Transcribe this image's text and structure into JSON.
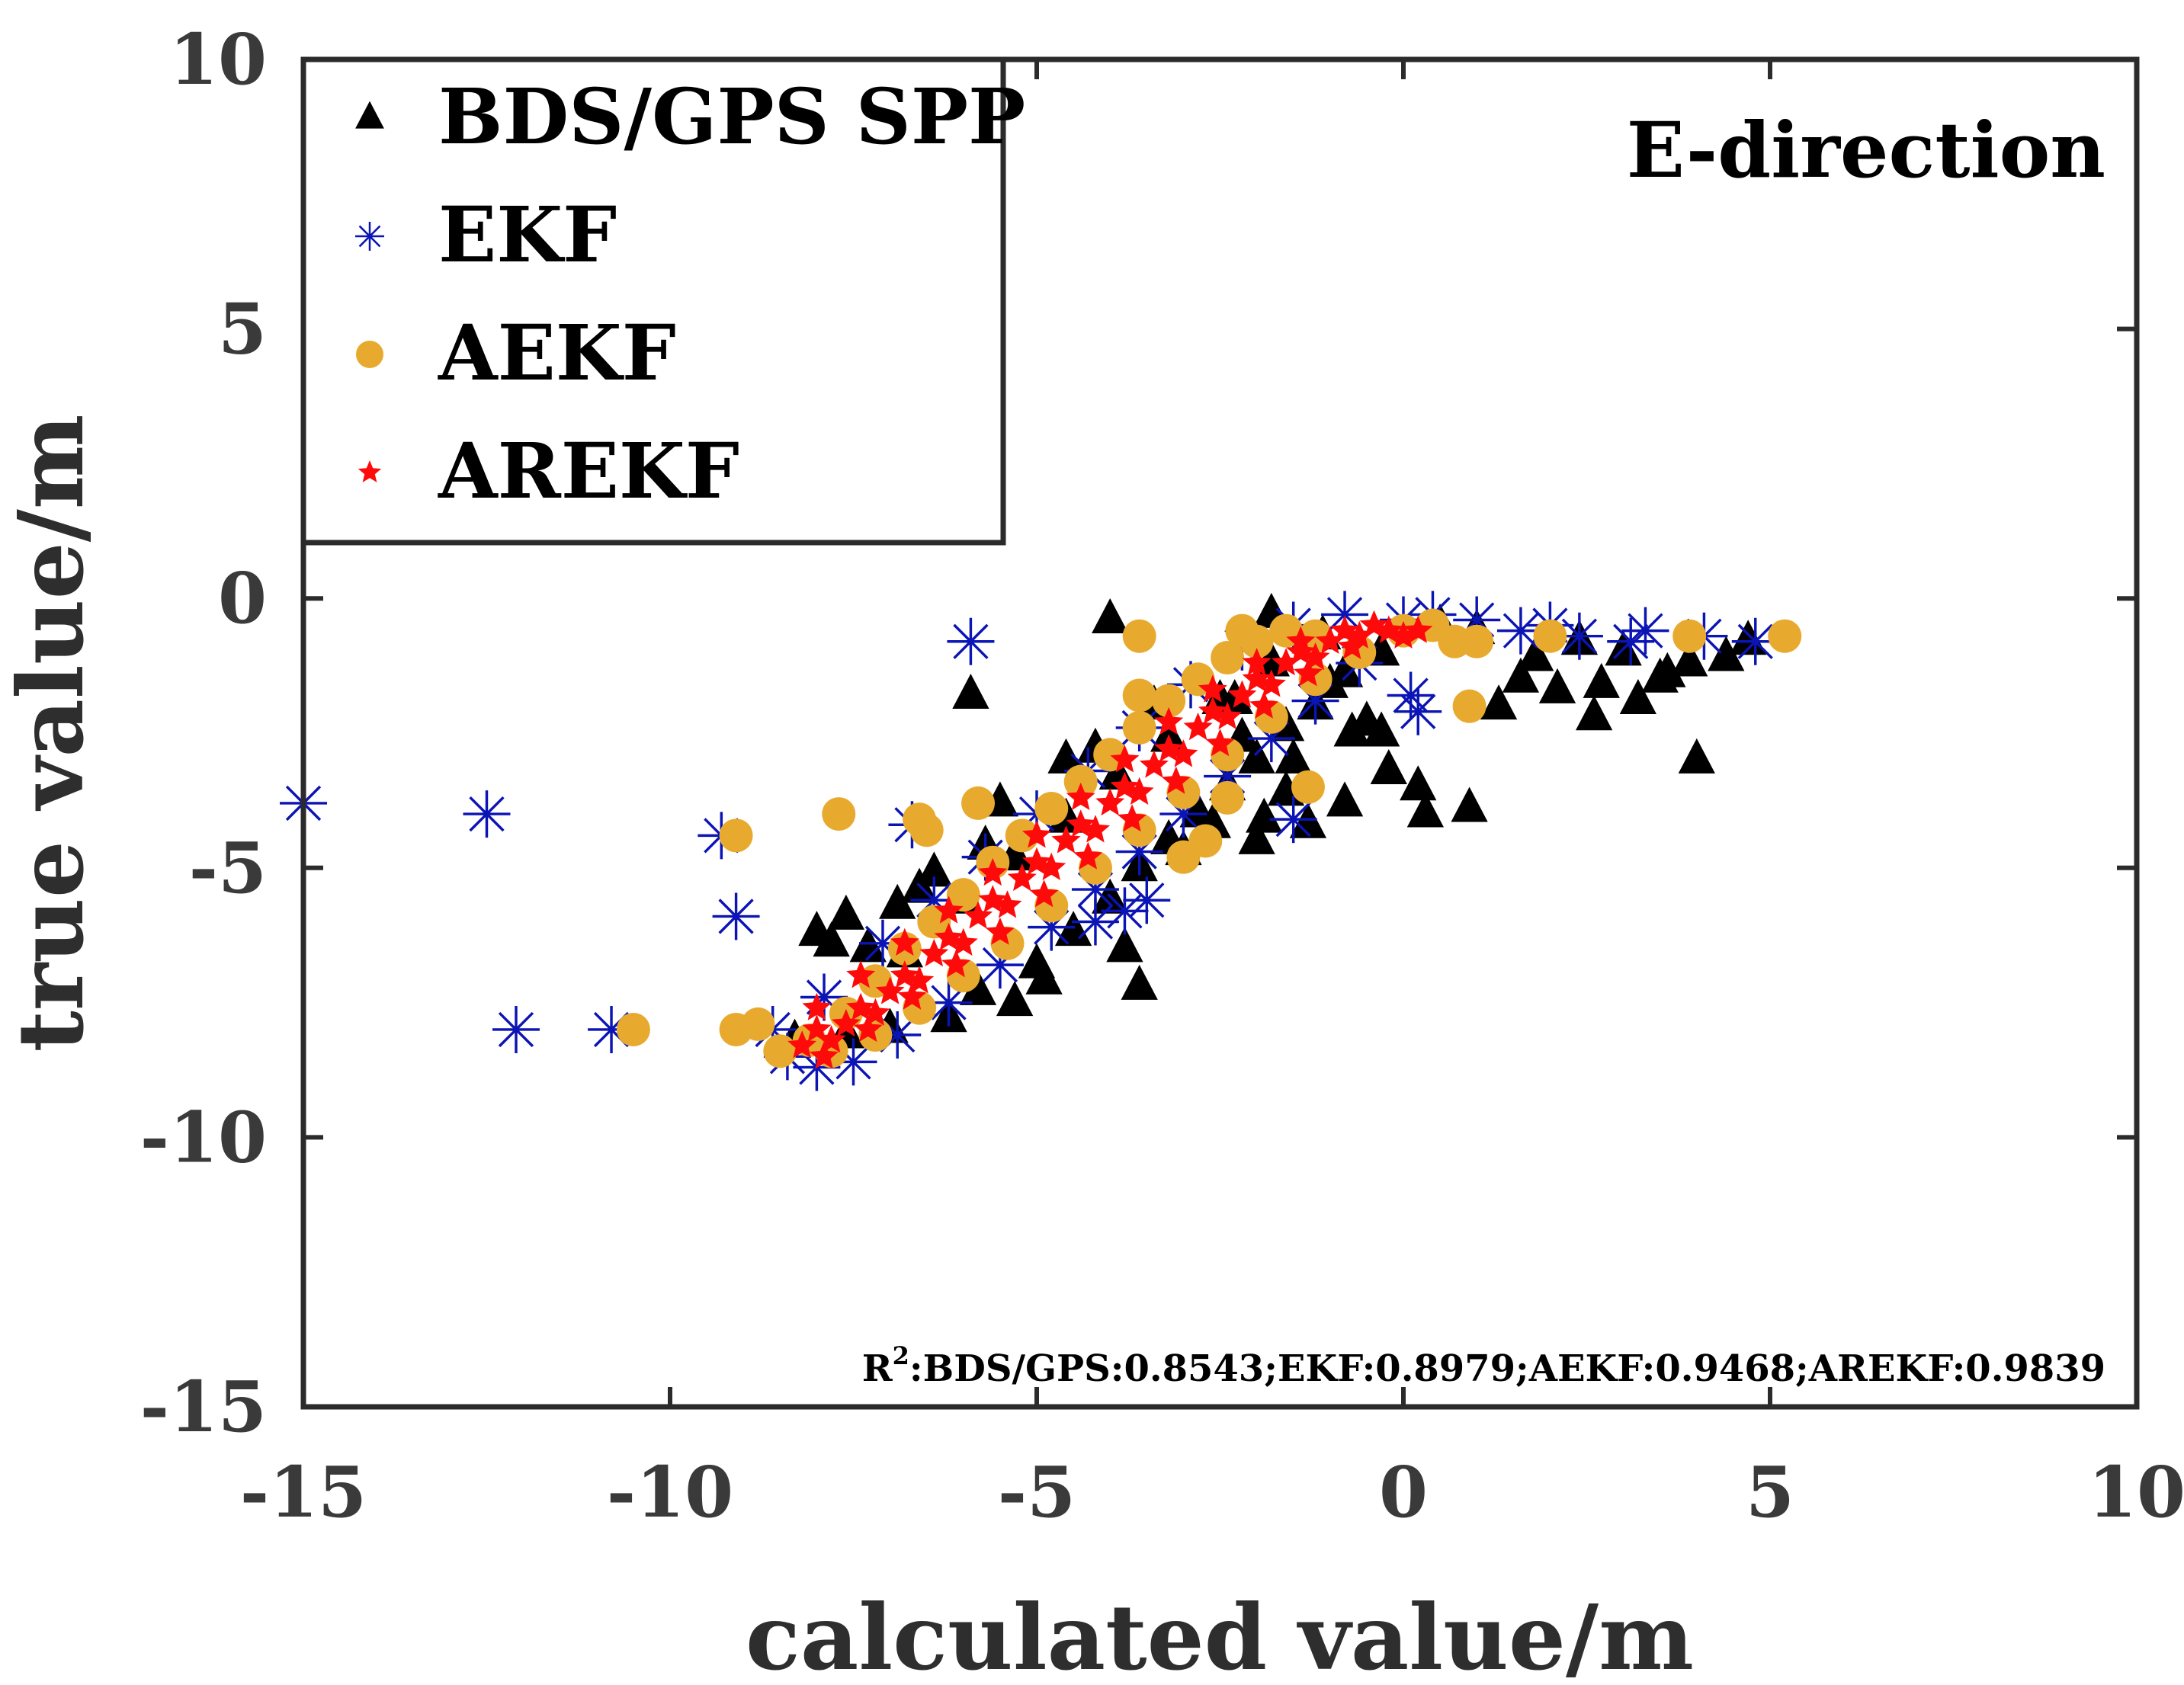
{
  "chart_data": {
    "type": "scatter",
    "title": "",
    "direction_label": "E-direction",
    "xlabel": "calculated value/m",
    "ylabel": "true value/m",
    "xlim": [
      -15,
      10
    ],
    "ylim": [
      -15,
      10
    ],
    "xticks": [
      -15,
      -10,
      -5,
      0,
      5,
      10
    ],
    "yticks": [
      -15,
      -10,
      -5,
      0,
      5,
      10
    ],
    "xtick_labels": [
      "-15",
      "-10",
      "-5",
      "0",
      "5",
      "10"
    ],
    "ytick_labels": [
      "-15",
      "-10",
      "-5",
      "0",
      "5",
      "10"
    ],
    "legend_position": "top-left",
    "annotation": {
      "r2_symbol": "R",
      "r2_exponent": "2",
      "text": ":BDS/GPS:0.8543;EKF:0.8979;AEKF:0.9468;AREKF:0.9839"
    },
    "series": [
      {
        "name": "BDS/GPS SPP",
        "marker": "triangle",
        "color": "#000000",
        "points": [
          [
            -5.9,
            -1.8
          ],
          [
            -4.0,
            -0.4
          ],
          [
            -3.6,
            -7.2
          ],
          [
            -1.8,
            -0.3
          ],
          [
            -2.2,
            -2.6
          ],
          [
            -1.9,
            -4.1
          ],
          [
            -1.3,
            -4.2
          ],
          [
            -0.8,
            -3.8
          ],
          [
            -0.5,
            -2.3
          ],
          [
            -0.3,
            -2.5
          ],
          [
            0.2,
            -3.5
          ],
          [
            0.3,
            -4.0
          ],
          [
            0.9,
            -3.9
          ],
          [
            1.3,
            -2.0
          ],
          [
            1.6,
            -1.5
          ],
          [
            2.1,
            -1.7
          ],
          [
            2.6,
            -2.2
          ],
          [
            3.2,
            -1.9
          ],
          [
            3.5,
            -1.5
          ],
          [
            3.9,
            -1.2
          ],
          [
            4.0,
            -3.0
          ],
          [
            4.4,
            -1.1
          ],
          [
            4.7,
            -0.8
          ],
          [
            -8.0,
            -6.2
          ],
          [
            -7.8,
            -6.4
          ],
          [
            -7.6,
            -5.9
          ],
          [
            -7.3,
            -6.5
          ],
          [
            -6.9,
            -5.7
          ],
          [
            -6.6,
            -5.4
          ],
          [
            -6.4,
            -5.1
          ],
          [
            -5.7,
            -4.6
          ],
          [
            -5.3,
            -7.5
          ],
          [
            -4.9,
            -7.1
          ],
          [
            -4.6,
            -3.0
          ],
          [
            -4.2,
            -2.8
          ],
          [
            -3.8,
            -6.5
          ],
          [
            -3.4,
            -2.0
          ],
          [
            -3.0,
            -4.7
          ],
          [
            -2.6,
            -4.2
          ],
          [
            -2.3,
            -1.9
          ],
          [
            -1.5,
            -3.0
          ],
          [
            -1.0,
            -1.6
          ],
          [
            -0.7,
            -2.5
          ],
          [
            0.5,
            -0.5
          ],
          [
            1.0,
            -0.6
          ],
          [
            2.4,
            -0.8
          ],
          [
            3.0,
            -1.0
          ],
          [
            -8.3,
            -8.2
          ],
          [
            -7.6,
            -8.1
          ],
          [
            -7.0,
            -8.0
          ],
          [
            -6.2,
            -7.8
          ],
          [
            -5.8,
            -7.3
          ],
          [
            -5.0,
            -6.8
          ],
          [
            -4.5,
            -6.2
          ],
          [
            -4.0,
            -5.6
          ],
          [
            -3.6,
            -5.0
          ],
          [
            -3.2,
            -4.5
          ],
          [
            -2.8,
            -4.0
          ],
          [
            -2.4,
            -3.5
          ],
          [
            -2.0,
            -3.0
          ],
          [
            -1.6,
            -2.4
          ],
          [
            -1.2,
            -2.0
          ],
          [
            -0.8,
            -1.4
          ],
          [
            -0.3,
            -1.0
          ],
          [
            -6.8,
            -6.6
          ],
          [
            -6.0,
            -5.6
          ],
          [
            -5.3,
            -4.8
          ],
          [
            -4.6,
            -4.1
          ],
          [
            -3.9,
            -3.3
          ],
          [
            -3.2,
            -2.6
          ],
          [
            -2.5,
            -1.9
          ],
          [
            -1.8,
            -1.2
          ],
          [
            -1.1,
            -0.7
          ],
          [
            1.8,
            -1.1
          ],
          [
            2.7,
            -1.6
          ],
          [
            3.6,
            -1.4
          ],
          [
            -2.0,
            -4.5
          ],
          [
            -1.6,
            -3.6
          ],
          [
            -0.2,
            -3.2
          ],
          [
            -5.5,
            -3.8
          ]
        ]
      },
      {
        "name": "EKF",
        "marker": "asterisk",
        "color": "#0b14b4",
        "points": [
          [
            -15.0,
            -3.8
          ],
          [
            -12.5,
            -4.0
          ],
          [
            -12.1,
            -8.0
          ],
          [
            -10.8,
            -8.0
          ],
          [
            -9.3,
            -4.4
          ],
          [
            -9.1,
            -5.9
          ],
          [
            -5.9,
            -0.8
          ],
          [
            -6.7,
            -4.2
          ],
          [
            -4.2,
            -6.0
          ],
          [
            -3.8,
            -5.8
          ],
          [
            -3.5,
            -5.6
          ],
          [
            -1.5,
            -4.1
          ],
          [
            0.2,
            -2.1
          ],
          [
            0.1,
            -1.8
          ],
          [
            1.6,
            -0.6
          ],
          [
            2.4,
            -0.7
          ],
          [
            3.1,
            -0.8
          ],
          [
            3.3,
            -0.6
          ],
          [
            4.1,
            -0.7
          ],
          [
            4.8,
            -0.8
          ],
          [
            -8.4,
            -8.5
          ],
          [
            -8.0,
            -8.7
          ],
          [
            -7.5,
            -8.6
          ],
          [
            -6.9,
            -8.1
          ],
          [
            -6.2,
            -7.5
          ],
          [
            -5.5,
            -6.8
          ],
          [
            -4.8,
            -6.1
          ],
          [
            -4.2,
            -5.4
          ],
          [
            -3.6,
            -4.7
          ],
          [
            -3.0,
            -4.0
          ],
          [
            -2.4,
            -3.3
          ],
          [
            -1.8,
            -2.6
          ],
          [
            -1.2,
            -1.9
          ],
          [
            -0.6,
            -1.2
          ],
          [
            0.0,
            -0.4
          ],
          [
            0.4,
            -0.3
          ],
          [
            1.0,
            -0.4
          ],
          [
            2.0,
            -0.5
          ],
          [
            -8.6,
            -8.0
          ],
          [
            -7.9,
            -7.4
          ],
          [
            -7.1,
            -6.4
          ],
          [
            -6.4,
            -5.6
          ],
          [
            -5.7,
            -4.8
          ],
          [
            -5.0,
            -4.0
          ],
          [
            -4.3,
            -3.2
          ],
          [
            -3.6,
            -2.4
          ],
          [
            -2.9,
            -1.6
          ],
          [
            -2.2,
            -0.9
          ],
          [
            -1.5,
            -0.5
          ],
          [
            -0.8,
            -0.3
          ]
        ]
      },
      {
        "name": "AEKF",
        "marker": "circle",
        "color": "#e8aa2e",
        "points": [
          [
            -10.5,
            -8.0
          ],
          [
            -9.1,
            -8.0
          ],
          [
            -8.8,
            -7.9
          ],
          [
            -9.1,
            -4.4
          ],
          [
            -7.7,
            -4.0
          ],
          [
            -6.6,
            -4.1
          ],
          [
            -6.5,
            -4.3
          ],
          [
            -5.8,
            -3.8
          ],
          [
            -3.6,
            -0.7
          ],
          [
            -3.6,
            -1.8
          ],
          [
            -2.2,
            -0.6
          ],
          [
            -1.2,
            -0.7
          ],
          [
            -1.3,
            -3.5
          ],
          [
            -2.4,
            -3.7
          ],
          [
            -3.0,
            -4.8
          ],
          [
            -2.7,
            -4.5
          ],
          [
            0.7,
            -0.8
          ],
          [
            1.0,
            -0.8
          ],
          [
            0.9,
            -2.0
          ],
          [
            2.0,
            -0.7
          ],
          [
            3.9,
            -0.7
          ],
          [
            5.2,
            -0.7
          ],
          [
            -8.5,
            -8.4
          ],
          [
            -8.1,
            -8.2
          ],
          [
            -7.6,
            -7.7
          ],
          [
            -7.2,
            -7.1
          ],
          [
            -6.8,
            -6.5
          ],
          [
            -6.4,
            -6.0
          ],
          [
            -6.0,
            -5.5
          ],
          [
            -5.6,
            -4.9
          ],
          [
            -5.2,
            -4.4
          ],
          [
            -4.8,
            -3.9
          ],
          [
            -4.4,
            -3.4
          ],
          [
            -4.0,
            -2.9
          ],
          [
            -3.6,
            -2.4
          ],
          [
            -3.2,
            -1.9
          ],
          [
            -2.8,
            -1.5
          ],
          [
            -2.4,
            -1.1
          ],
          [
            -2.0,
            -0.8
          ],
          [
            -1.6,
            -0.6
          ],
          [
            -7.8,
            -8.4
          ],
          [
            -7.2,
            -8.1
          ],
          [
            -6.6,
            -7.6
          ],
          [
            -6.0,
            -7.0
          ],
          [
            -5.4,
            -6.4
          ],
          [
            -4.8,
            -5.7
          ],
          [
            -4.2,
            -5.0
          ],
          [
            -3.6,
            -4.3
          ],
          [
            -3.0,
            -3.6
          ],
          [
            -2.4,
            -2.9
          ],
          [
            -1.8,
            -2.2
          ],
          [
            -1.2,
            -1.5
          ],
          [
            -0.6,
            -1.0
          ],
          [
            0.0,
            -0.6
          ],
          [
            0.4,
            -0.5
          ]
        ]
      },
      {
        "name": "AREKF",
        "marker": "star",
        "color": "#ff0a0a",
        "points": [
          [
            -8.2,
            -8.3
          ],
          [
            -8.0,
            -8.0
          ],
          [
            -7.8,
            -8.2
          ],
          [
            -7.6,
            -7.9
          ],
          [
            -7.4,
            -7.6
          ],
          [
            -7.2,
            -7.7
          ],
          [
            -7.0,
            -7.3
          ],
          [
            -6.8,
            -7.0
          ],
          [
            -6.6,
            -7.1
          ],
          [
            -6.4,
            -6.6
          ],
          [
            -6.2,
            -6.3
          ],
          [
            -6.0,
            -6.4
          ],
          [
            -5.8,
            -5.9
          ],
          [
            -5.6,
            -5.6
          ],
          [
            -5.4,
            -5.7
          ],
          [
            -5.2,
            -5.2
          ],
          [
            -5.0,
            -4.9
          ],
          [
            -4.8,
            -5.0
          ],
          [
            -4.6,
            -4.5
          ],
          [
            -4.4,
            -4.2
          ],
          [
            -4.2,
            -4.3
          ],
          [
            -4.0,
            -3.8
          ],
          [
            -3.8,
            -3.5
          ],
          [
            -3.6,
            -3.6
          ],
          [
            -3.4,
            -3.1
          ],
          [
            -3.2,
            -2.8
          ],
          [
            -3.0,
            -2.9
          ],
          [
            -2.8,
            -2.4
          ],
          [
            -2.6,
            -2.1
          ],
          [
            -2.4,
            -2.2
          ],
          [
            -2.2,
            -1.8
          ],
          [
            -2.0,
            -1.5
          ],
          [
            -1.8,
            -1.6
          ],
          [
            -1.6,
            -1.2
          ],
          [
            -1.4,
            -1.0
          ],
          [
            -1.2,
            -1.1
          ],
          [
            -1.0,
            -0.8
          ],
          [
            -0.8,
            -0.6
          ],
          [
            -0.6,
            -0.7
          ],
          [
            -0.4,
            -0.5
          ],
          [
            -0.2,
            -0.6
          ],
          [
            0.0,
            -0.7
          ],
          [
            0.2,
            -0.6
          ],
          [
            -7.9,
            -8.5
          ],
          [
            -7.3,
            -8.0
          ],
          [
            -6.7,
            -7.4
          ],
          [
            -6.1,
            -6.8
          ],
          [
            -5.5,
            -6.2
          ],
          [
            -4.9,
            -5.5
          ],
          [
            -4.3,
            -4.8
          ],
          [
            -3.7,
            -4.1
          ],
          [
            -3.1,
            -3.4
          ],
          [
            -2.5,
            -2.7
          ],
          [
            -1.9,
            -2.0
          ],
          [
            -1.3,
            -1.4
          ],
          [
            -0.7,
            -0.9
          ],
          [
            -8.0,
            -7.6
          ],
          [
            -7.4,
            -7.0
          ],
          [
            -6.8,
            -6.4
          ],
          [
            -6.2,
            -5.8
          ],
          [
            -5.6,
            -5.1
          ],
          [
            -5.0,
            -4.4
          ],
          [
            -4.4,
            -3.7
          ],
          [
            -3.8,
            -3.0
          ],
          [
            -3.2,
            -2.3
          ],
          [
            -2.6,
            -1.7
          ],
          [
            -2.0,
            -1.2
          ],
          [
            -1.4,
            -0.8
          ]
        ]
      }
    ]
  }
}
